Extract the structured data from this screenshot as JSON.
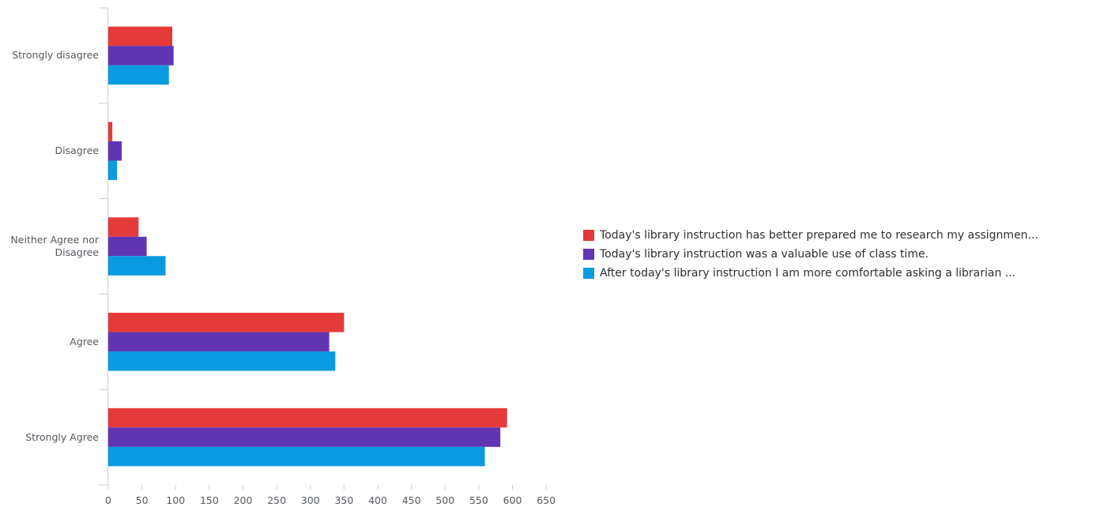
{
  "chart_data": {
    "type": "bar",
    "orientation": "horizontal",
    "categories": [
      "Strongly disagree",
      "Disagree",
      "Neither Agree nor Disagree",
      "Agree",
      "Strongly Agree"
    ],
    "category_labels_display": [
      [
        "Strongly disagree"
      ],
      [
        "Disagree"
      ],
      [
        "Neither Agree nor",
        "Disagree"
      ],
      [
        "Agree"
      ],
      [
        "Strongly Agree"
      ]
    ],
    "series": [
      {
        "name": "Today's library instruction has better prepared me to research my assignmen...",
        "color": "#e53a3a",
        "values": [
          95,
          6,
          45,
          350,
          592
        ]
      },
      {
        "name": "Today's library instruction was a valuable use of class time.",
        "color": "#5f35b3",
        "values": [
          97,
          20,
          57,
          328,
          582
        ]
      },
      {
        "name": "After today's library instruction I am more comfortable asking a librarian ...",
        "color": "#0a9ae0",
        "values": [
          90,
          13,
          85,
          337,
          559
        ]
      }
    ],
    "xticks": [
      0,
      50,
      100,
      150,
      200,
      250,
      300,
      350,
      400,
      450,
      500,
      550,
      600,
      650
    ],
    "xlim": [
      0,
      650
    ],
    "grid": false,
    "legend_position": "right",
    "title": "",
    "xlabel": "",
    "ylabel": ""
  }
}
